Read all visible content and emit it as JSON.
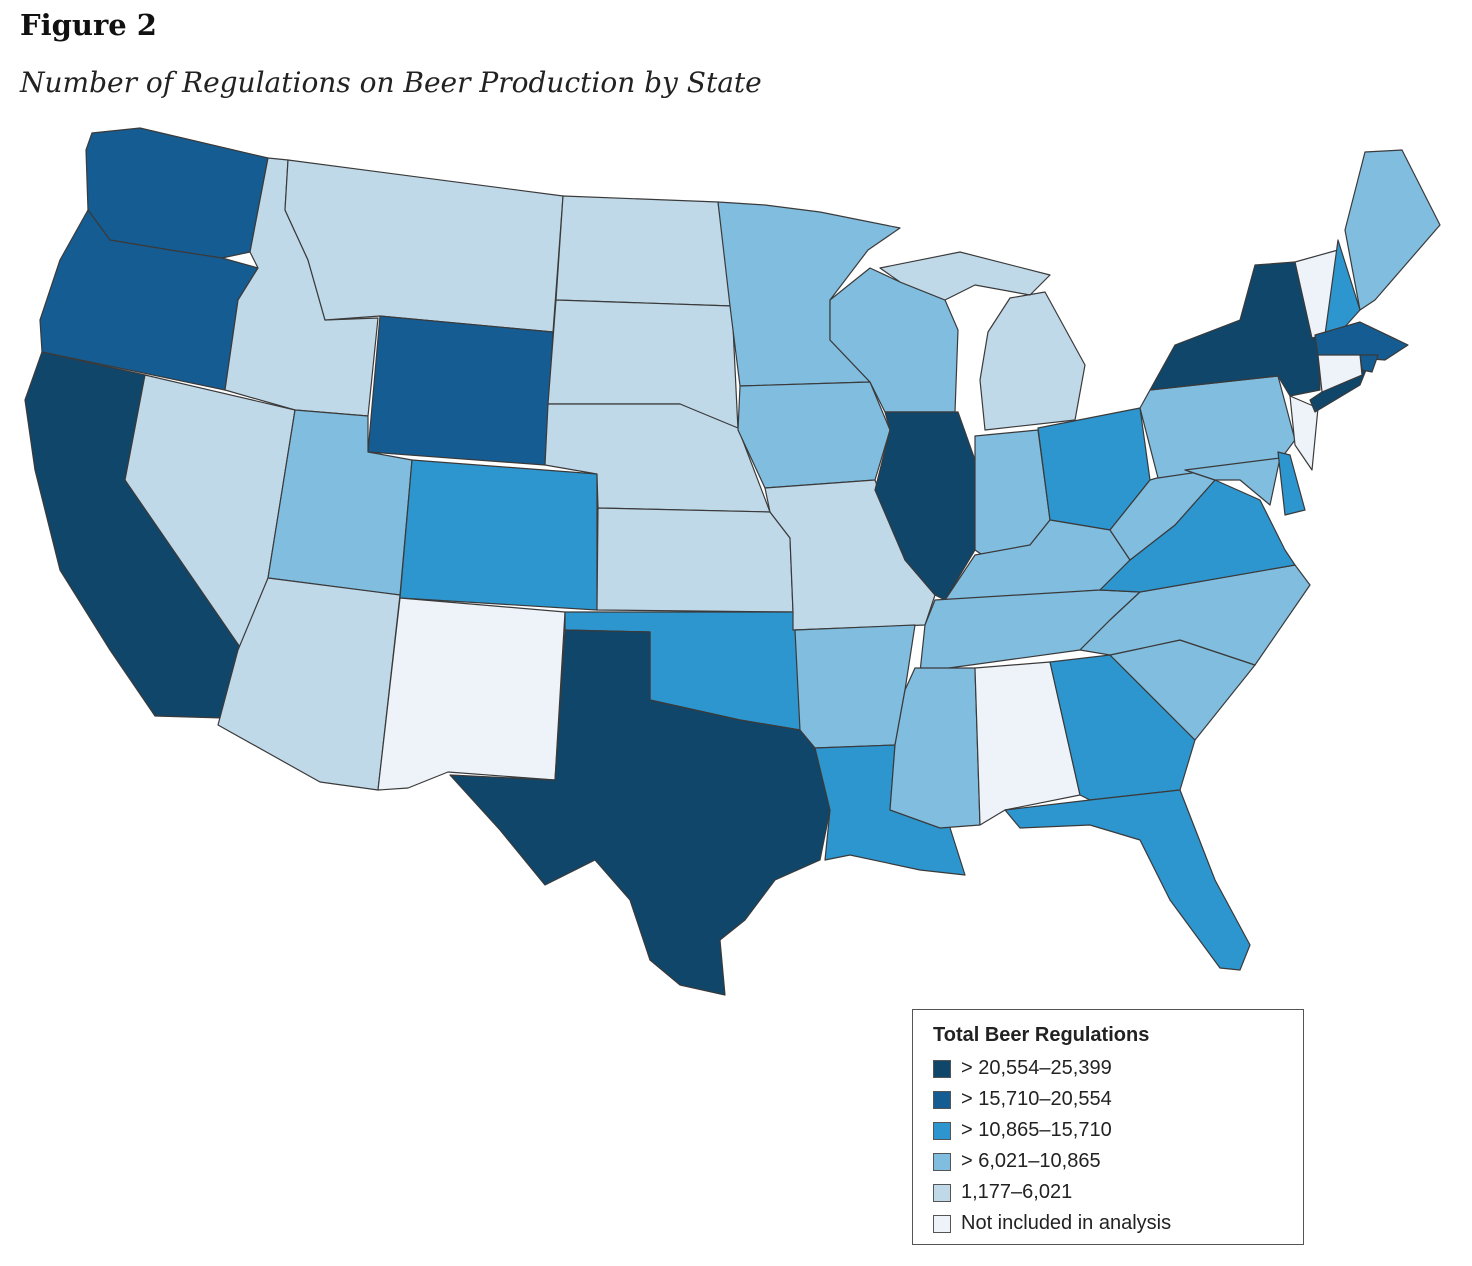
{
  "figure": {
    "label": "Figure 2",
    "title": "Number of Regulations on Beer Production by State"
  },
  "legend": {
    "title": "Total Beer Regulations",
    "items": [
      {
        "label": "> 20,554–25,399",
        "color": "#10466a"
      },
      {
        "label": "> 15,710–20,554",
        "color": "#155c92"
      },
      {
        "label": "> 10,865–15,710",
        "color": "#2e96ce"
      },
      {
        "label": "> 6,021–10,865",
        "color": "#80bddf"
      },
      {
        "label": "1,177–6,021",
        "color": "#c0d9e9"
      },
      {
        "label": "Not included in analysis",
        "color": "#eef3fa"
      }
    ]
  },
  "map_data": {
    "metric": "Total Beer Regulations",
    "states": [
      {
        "state": "WA",
        "bin": 1
      },
      {
        "state": "OR",
        "bin": 1
      },
      {
        "state": "CA",
        "bin": 0
      },
      {
        "state": "ID",
        "bin": 4
      },
      {
        "state": "NV",
        "bin": 4
      },
      {
        "state": "MT",
        "bin": 4
      },
      {
        "state": "WY",
        "bin": 1
      },
      {
        "state": "UT",
        "bin": 3
      },
      {
        "state": "AZ",
        "bin": 4
      },
      {
        "state": "CO",
        "bin": 2
      },
      {
        "state": "NM",
        "bin": 5
      },
      {
        "state": "ND",
        "bin": 4
      },
      {
        "state": "SD",
        "bin": 4
      },
      {
        "state": "NE",
        "bin": 4
      },
      {
        "state": "KS",
        "bin": 4
      },
      {
        "state": "OK",
        "bin": 2
      },
      {
        "state": "TX",
        "bin": 0
      },
      {
        "state": "MN",
        "bin": 3
      },
      {
        "state": "IA",
        "bin": 3
      },
      {
        "state": "MO",
        "bin": 4
      },
      {
        "state": "AR",
        "bin": 3
      },
      {
        "state": "LA",
        "bin": 2
      },
      {
        "state": "WI",
        "bin": 3
      },
      {
        "state": "IL",
        "bin": 0
      },
      {
        "state": "MI",
        "bin": 4
      },
      {
        "state": "IN",
        "bin": 3
      },
      {
        "state": "OH",
        "bin": 2
      },
      {
        "state": "KY",
        "bin": 3
      },
      {
        "state": "TN",
        "bin": 3
      },
      {
        "state": "MS",
        "bin": 3
      },
      {
        "state": "AL",
        "bin": 5
      },
      {
        "state": "GA",
        "bin": 2
      },
      {
        "state": "FL",
        "bin": 2
      },
      {
        "state": "SC",
        "bin": 3
      },
      {
        "state": "NC",
        "bin": 3
      },
      {
        "state": "VA",
        "bin": 2
      },
      {
        "state": "WV",
        "bin": 3
      },
      {
        "state": "PA",
        "bin": 3
      },
      {
        "state": "NY",
        "bin": 0
      },
      {
        "state": "VT",
        "bin": 5
      },
      {
        "state": "NH",
        "bin": 2
      },
      {
        "state": "ME",
        "bin": 3
      },
      {
        "state": "MA",
        "bin": 1
      },
      {
        "state": "RI",
        "bin": 1
      },
      {
        "state": "CT",
        "bin": 5
      },
      {
        "state": "NJ",
        "bin": 5
      },
      {
        "state": "DE",
        "bin": 2
      },
      {
        "state": "MD",
        "bin": 3
      }
    ]
  }
}
